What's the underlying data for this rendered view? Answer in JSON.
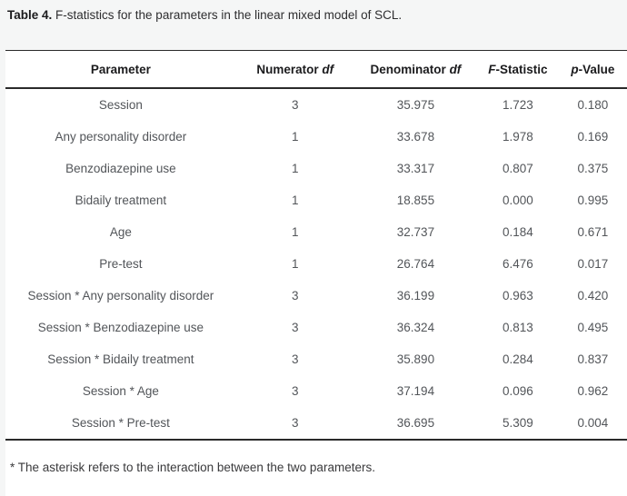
{
  "caption": {
    "label": "Table 4.",
    "text": " F-statistics for the parameters in the linear mixed model of SCL."
  },
  "table": {
    "columns": [
      {
        "pre": "Parameter",
        "it": "",
        "post": ""
      },
      {
        "pre": "Numerator ",
        "it": "df",
        "post": ""
      },
      {
        "pre": "Denominator ",
        "it": "df",
        "post": ""
      },
      {
        "pre": "",
        "it": "F",
        "post": "-Statistic"
      },
      {
        "pre": "",
        "it": "p",
        "post": "-Value"
      }
    ],
    "rows": [
      [
        "Session",
        "3",
        "35.975",
        "1.723",
        "0.180"
      ],
      [
        "Any personality disorder",
        "1",
        "33.678",
        "1.978",
        "0.169"
      ],
      [
        "Benzodiazepine use",
        "1",
        "33.317",
        "0.807",
        "0.375"
      ],
      [
        "Bidaily treatment",
        "1",
        "18.855",
        "0.000",
        "0.995"
      ],
      [
        "Age",
        "1",
        "32.737",
        "0.184",
        "0.671"
      ],
      [
        "Pre-test",
        "1",
        "26.764",
        "6.476",
        "0.017"
      ],
      [
        "Session * Any personality disorder",
        "3",
        "36.199",
        "0.963",
        "0.420"
      ],
      [
        "Session * Benzodiazepine use",
        "3",
        "36.324",
        "0.813",
        "0.495"
      ],
      [
        "Session * Bidaily treatment",
        "3",
        "35.890",
        "0.284",
        "0.837"
      ],
      [
        "Session * Age",
        "3",
        "37.194",
        "0.096",
        "0.962"
      ],
      [
        "Session * Pre-test",
        "3",
        "36.695",
        "5.309",
        "0.004"
      ]
    ]
  },
  "footnote": "* The asterisk refers to the interaction between the two parameters.",
  "colors": {
    "page_background": "#f5f6f6",
    "panel_background": "#ffffff",
    "border": "#2a2a2a",
    "header_text": "#1b1b1d",
    "body_text": "#525559"
  }
}
